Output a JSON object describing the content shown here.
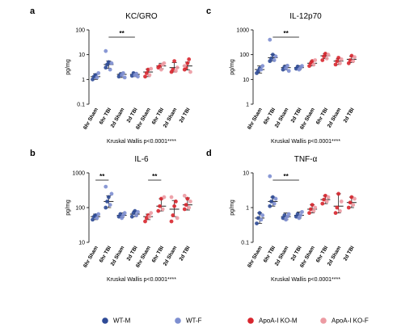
{
  "colors": {
    "WT-M": "#2e4a96",
    "WT-F": "#7d8ed0",
    "ApoA-I KO-M": "#d8262e",
    "ApoA-I KO-F": "#ec9aa2"
  },
  "legend": {
    "position": "bottom",
    "items": [
      {
        "label": "WT-M",
        "color_key": "WT-M"
      },
      {
        "label": "WT-F",
        "color_key": "WT-F"
      },
      {
        "label": "ApoA-I KO-M",
        "color_key": "ApoA-I KO-M"
      },
      {
        "label": "ApoA-I KO-F",
        "color_key": "ApoA-I KO-F"
      }
    ]
  },
  "chart_data": [
    {
      "type": "scatter",
      "panel_label": "a",
      "title": "KC/GRO",
      "ylabel": "pg/mg",
      "yscale": "log",
      "ylim": [
        0.1,
        100
      ],
      "yticks": [
        "0.1",
        "1",
        "10",
        "100"
      ],
      "categories": [
        "6hr Sham",
        "6hr TBI",
        "2d Sham",
        "2d TBI",
        "6hr Sham",
        "6hr TBI",
        "2d Sham",
        "2d TBI"
      ],
      "groups": [
        "WT",
        "WT",
        "WT",
        "WT",
        "ApoA-I KO",
        "ApoA-I KO",
        "ApoA-I KO",
        "ApoA-I KO"
      ],
      "means": [
        1.3,
        4.0,
        1.6,
        1.6,
        2.0,
        3.5,
        3.0,
        3.5
      ],
      "error_low": [
        1.0,
        2.8,
        1.2,
        1.3,
        1.3,
        2.7,
        2.0,
        2.4
      ],
      "error_high": [
        1.7,
        5.5,
        1.9,
        1.9,
        2.6,
        4.5,
        4.8,
        5.0
      ],
      "points": [
        {
          "male": [
            1.0,
            1.3,
            1.5
          ],
          "female": [
            1.2,
            1.8
          ]
        },
        {
          "male": [
            3.0,
            4.0,
            5.0
          ],
          "female": [
            2.5,
            4.5,
            14
          ]
        },
        {
          "male": [
            1.3,
            1.6
          ],
          "female": [
            1.5,
            1.8,
            1.2
          ]
        },
        {
          "male": [
            1.4,
            1.8
          ],
          "female": [
            1.5,
            1.7,
            1.3
          ]
        },
        {
          "male": [
            1.3,
            1.8,
            2.5
          ],
          "female": [
            1.5,
            2.7
          ]
        },
        {
          "male": [
            3.0,
            3.5
          ],
          "female": [
            2.5,
            4.0,
            4.5
          ]
        },
        {
          "male": [
            2.0,
            2.5,
            5.5
          ],
          "female": [
            2.2,
            3.0
          ]
        },
        {
          "male": [
            2.5,
            3.0,
            4.5,
            6.5
          ],
          "female": [
            2.0,
            3.5
          ]
        }
      ],
      "significance": [
        {
          "from": 1,
          "to": 3,
          "label": "**"
        }
      ],
      "footnote": "Kruskal Wallis p<0.0001****"
    },
    {
      "type": "scatter",
      "panel_label": "c",
      "title": "IL-12p70",
      "ylabel": "pg/mg",
      "yscale": "log",
      "ylim": [
        1,
        1000
      ],
      "yticks": [
        "1",
        "10",
        "100",
        "1000"
      ],
      "categories": [
        "6hr Sham",
        "6hr TBI",
        "2d Sham",
        "2d TBI",
        "6hr Sham",
        "6hr TBI",
        "2d Sham",
        "2d TBI"
      ],
      "groups": [
        "WT",
        "WT",
        "WT",
        "WT",
        "ApoA-I KO",
        "ApoA-I KO",
        "ApoA-I KO",
        "ApoA-I KO"
      ],
      "means": [
        25,
        75,
        30,
        30,
        45,
        90,
        55,
        65
      ],
      "error_low": [
        18,
        55,
        24,
        25,
        35,
        70,
        40,
        48
      ],
      "error_high": [
        35,
        100,
        38,
        36,
        55,
        110,
        70,
        85
      ],
      "points": [
        {
          "male": [
            18,
            22,
            28
          ],
          "female": [
            25,
            35
          ]
        },
        {
          "male": [
            55,
            70,
            100
          ],
          "female": [
            60,
            85,
            400
          ]
        },
        {
          "male": [
            25,
            32
          ],
          "female": [
            28,
            36,
            22
          ]
        },
        {
          "male": [
            27,
            33
          ],
          "female": [
            25,
            30,
            35
          ]
        },
        {
          "male": [
            35,
            45,
            55
          ],
          "female": [
            40,
            60
          ]
        },
        {
          "male": [
            60,
            85,
            110
          ],
          "female": [
            70,
            100
          ]
        },
        {
          "male": [
            40,
            55,
            75
          ],
          "female": [
            45,
            65
          ]
        },
        {
          "male": [
            45,
            60,
            90
          ],
          "female": [
            55,
            80
          ]
        }
      ],
      "significance": [
        {
          "from": 1,
          "to": 3,
          "label": "**"
        }
      ],
      "footnote": "Kruskal Wallis p<0.0001****"
    },
    {
      "type": "scatter",
      "panel_label": "b",
      "title": "IL-6",
      "ylabel": "pg/mg",
      "yscale": "log",
      "ylim": [
        10,
        1000
      ],
      "yticks": [
        "10",
        "100",
        "1000"
      ],
      "categories": [
        "6hr Sham",
        "6hr TBI",
        "2d Sham",
        "2d TBI",
        "6hr Sham",
        "6hr TBI",
        "2d Sham",
        "2d TBI"
      ],
      "groups": [
        "WT",
        "WT",
        "WT",
        "WT",
        "ApoA-I KO",
        "ApoA-I KO",
        "ApoA-I KO",
        "ApoA-I KO"
      ],
      "means": [
        55,
        150,
        60,
        65,
        55,
        110,
        90,
        120
      ],
      "error_low": [
        45,
        100,
        52,
        55,
        45,
        80,
        55,
        85
      ],
      "error_high": [
        65,
        220,
        70,
        80,
        65,
        180,
        160,
        190
      ],
      "points": [
        {
          "male": [
            45,
            55,
            60
          ],
          "female": [
            50,
            65
          ]
        },
        {
          "male": [
            100,
            150,
            200
          ],
          "female": [
            120,
            250,
            400
          ]
        },
        {
          "male": [
            55,
            65
          ],
          "female": [
            50,
            60,
            70
          ]
        },
        {
          "male": [
            55,
            70,
            80
          ],
          "female": [
            60,
            75
          ]
        },
        {
          "male": [
            40,
            50,
            60
          ],
          "female": [
            55,
            70
          ]
        },
        {
          "male": [
            80,
            110,
            180
          ],
          "female": [
            90,
            200
          ]
        },
        {
          "male": [
            40,
            60,
            110,
            150
          ],
          "female": [
            50,
            200
          ]
        },
        {
          "male": [
            90,
            120,
            180
          ],
          "female": [
            100,
            150,
            220
          ]
        }
      ],
      "significance": [
        {
          "from": 0,
          "to": 1,
          "label": "**"
        },
        {
          "from": 4,
          "to": 5,
          "label": "**"
        }
      ],
      "footnote": "Kruskal Wallis p<0.0001****"
    },
    {
      "type": "scatter",
      "panel_label": "d",
      "title": "TNF-α",
      "ylabel": "pg/mg",
      "yscale": "log",
      "ylim": [
        0.1,
        10
      ],
      "yticks": [
        "0.1",
        "1",
        "10"
      ],
      "categories": [
        "6hr Sham",
        "6hr TBI",
        "2d Sham",
        "2d TBI",
        "6hr Sham",
        "6hr TBI",
        "2d Sham",
        "2d TBI"
      ],
      "groups": [
        "WT",
        "WT",
        "WT",
        "WT",
        "ApoA-I KO",
        "ApoA-I KO",
        "ApoA-I KO",
        "ApoA-I KO"
      ],
      "means": [
        0.5,
        1.5,
        0.55,
        0.6,
        0.9,
        1.7,
        1.1,
        1.4
      ],
      "error_low": [
        0.35,
        1.1,
        0.45,
        0.5,
        0.7,
        1.3,
        0.7,
        1.0
      ],
      "error_high": [
        0.7,
        2.0,
        0.7,
        0.75,
        1.2,
        2.2,
        2.5,
        2.0
      ],
      "points": [
        {
          "male": [
            0.35,
            0.5,
            0.7
          ],
          "female": [
            0.45,
            0.6
          ]
        },
        {
          "male": [
            1.1,
            1.5,
            2.0
          ],
          "female": [
            1.3,
            1.8,
            8.0
          ]
        },
        {
          "male": [
            0.5,
            0.6
          ],
          "female": [
            0.45,
            0.55,
            0.65
          ]
        },
        {
          "male": [
            0.55,
            0.65
          ],
          "female": [
            0.5,
            0.6,
            0.75
          ]
        },
        {
          "male": [
            0.7,
            0.9,
            1.2
          ],
          "female": [
            0.8,
            1.0
          ]
        },
        {
          "male": [
            1.3,
            1.7,
            2.2
          ],
          "female": [
            1.5,
            2.0
          ]
        },
        {
          "male": [
            0.7,
            1.0,
            2.5
          ],
          "female": [
            0.8,
            1.5
          ]
        },
        {
          "male": [
            1.0,
            1.4,
            2.0
          ],
          "female": [
            1.2,
            1.8
          ]
        }
      ],
      "significance": [
        {
          "from": 1,
          "to": 3,
          "label": "**"
        }
      ],
      "footnote": "Kruskal Wallis p<0.0001****"
    }
  ]
}
